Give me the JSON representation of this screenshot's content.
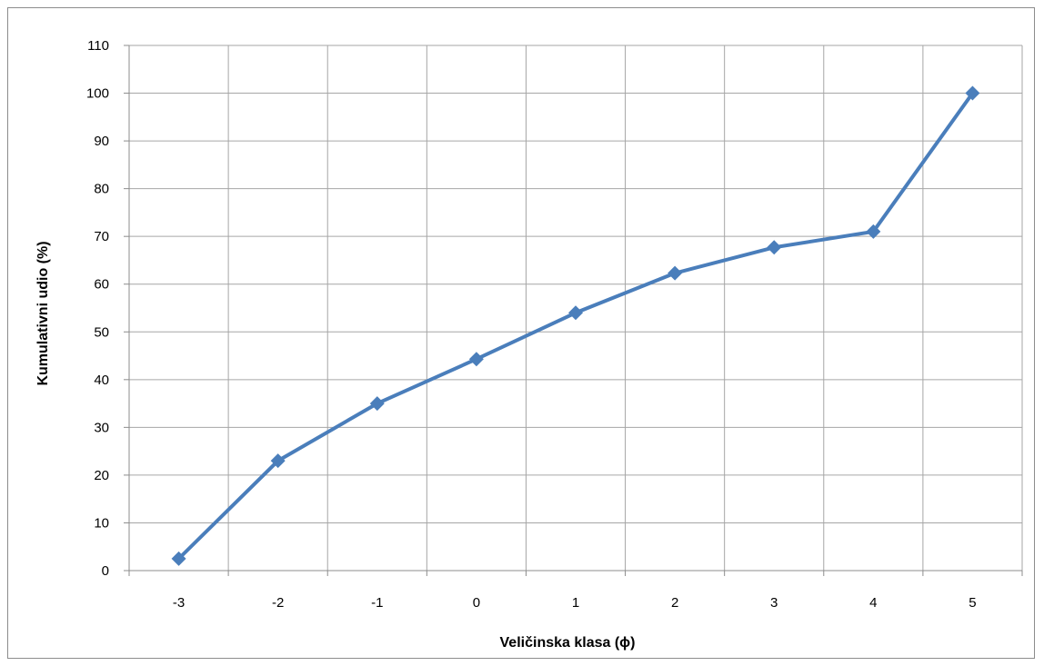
{
  "chart_data": {
    "type": "line",
    "title": "",
    "xlabel": "Veličinska klasa (ϕ)",
    "ylabel": "Kumulativni udio  (%)",
    "categories": [
      "-3",
      "-2",
      "-1",
      "0",
      "1",
      "2",
      "3",
      "4",
      "5"
    ],
    "series": [
      {
        "values": [
          2.5,
          23,
          35,
          44.3,
          54,
          62.3,
          67.7,
          71,
          100
        ]
      }
    ],
    "ylim": [
      0,
      110
    ],
    "yticks": [
      0,
      10,
      20,
      30,
      40,
      50,
      60,
      70,
      80,
      90,
      100,
      110
    ],
    "grid": true,
    "legend": "none",
    "marker": "diamond",
    "line_color": "#4a7ebb",
    "marker_color": "#4a7ebb",
    "grid_color": "#a6a6a6"
  }
}
